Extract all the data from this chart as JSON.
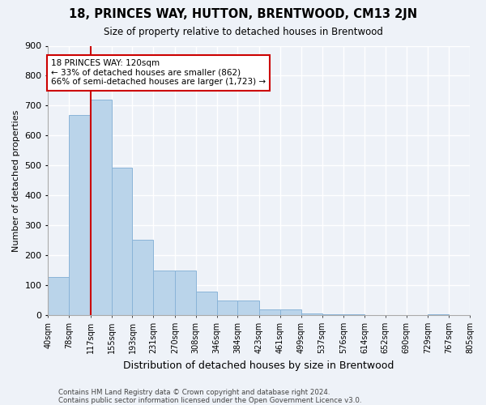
{
  "title": "18, PRINCES WAY, HUTTON, BRENTWOOD, CM13 2JN",
  "subtitle": "Size of property relative to detached houses in Brentwood",
  "xlabel": "Distribution of detached houses by size in Brentwood",
  "ylabel": "Number of detached properties",
  "bar_color": "#bad4ea",
  "bar_edge_color": "#8ab4d8",
  "vline_x": 117,
  "vline_color": "#cc0000",
  "annotation_text": "18 PRINCES WAY: 120sqm\n← 33% of detached houses are smaller (862)\n66% of semi-detached houses are larger (1,723) →",
  "annotation_box_color": "#ffffff",
  "annotation_box_edge": "#cc0000",
  "footer_line1": "Contains HM Land Registry data © Crown copyright and database right 2024.",
  "footer_line2": "Contains public sector information licensed under the Open Government Licence v3.0.",
  "background_color": "#eef2f8",
  "grid_color": "#ffffff",
  "bin_edges": [
    40,
    78,
    117,
    155,
    193,
    231,
    270,
    308,
    346,
    384,
    423,
    461,
    499,
    537,
    576,
    614,
    652,
    690,
    729,
    767,
    805
  ],
  "bin_labels": [
    "40sqm",
    "78sqm",
    "117sqm",
    "155sqm",
    "193sqm",
    "231sqm",
    "270sqm",
    "308sqm",
    "346sqm",
    "384sqm",
    "423sqm",
    "461sqm",
    "499sqm",
    "537sqm",
    "576sqm",
    "614sqm",
    "652sqm",
    "690sqm",
    "729sqm",
    "767sqm",
    "805sqm"
  ],
  "counts": [
    128,
    668,
    720,
    492,
    252,
    148,
    148,
    80,
    50,
    48,
    20,
    18,
    6,
    2,
    2,
    0,
    0,
    0,
    2,
    0,
    0
  ],
  "ylim": [
    0,
    900
  ],
  "yticks": [
    0,
    100,
    200,
    300,
    400,
    500,
    600,
    700,
    800,
    900
  ]
}
